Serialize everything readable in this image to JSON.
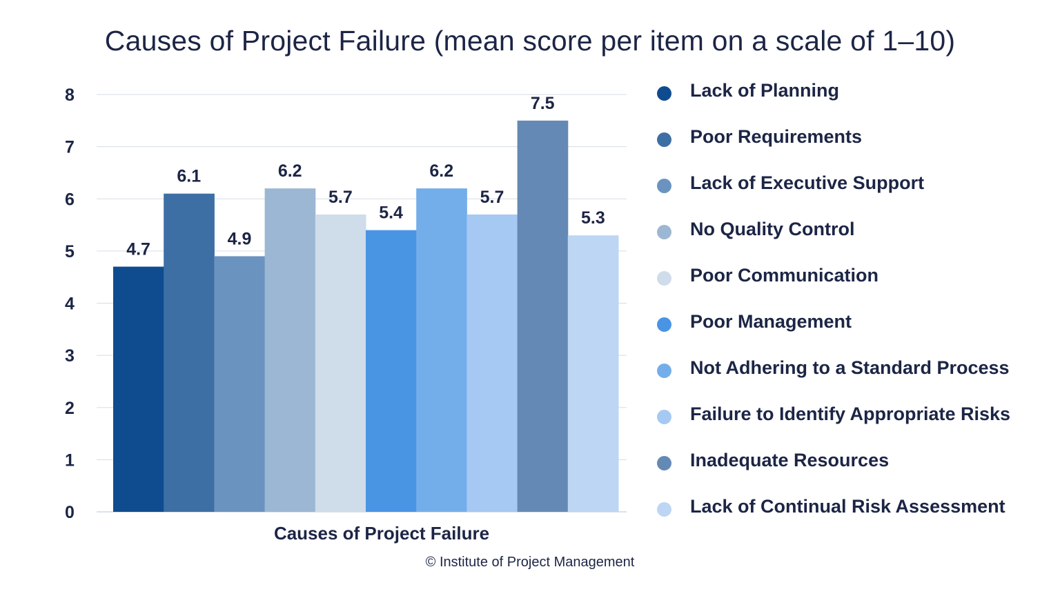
{
  "title": "Causes of Project Failure (mean score per item on a scale of 1–10)",
  "credit": "© Institute of Project Management",
  "chart_data": {
    "type": "bar",
    "title": "Causes of Project Failure (mean score per item on a scale of 1–10)",
    "xlabel": "Causes of Project Failure",
    "ylabel": "",
    "ylim": [
      0,
      8
    ],
    "yticks": [
      "0",
      "1",
      "2",
      "3",
      "4",
      "5",
      "6",
      "7",
      "8"
    ],
    "grid": true,
    "legend_position": "right",
    "series": [
      {
        "name": "Lack of Planning",
        "value": 4.7,
        "label": "4.7",
        "color": "#0f4c8f"
      },
      {
        "name": "Poor Requirements",
        "value": 6.1,
        "label": "6.1",
        "color": "#3d6fa5"
      },
      {
        "name": "Lack of Executive Support",
        "value": 4.9,
        "label": "4.9",
        "color": "#6b93bf"
      },
      {
        "name": "No Quality Control",
        "value": 6.2,
        "label": "6.2",
        "color": "#9cb7d4"
      },
      {
        "name": "Poor Communication",
        "value": 5.7,
        "label": "5.7",
        "color": "#cfdcea"
      },
      {
        "name": "Poor Management",
        "value": 5.4,
        "label": "5.4",
        "color": "#4a94e4"
      },
      {
        "name": "Not Adhering to a Standard Process",
        "value": 6.2,
        "label": "6.2",
        "color": "#74aeea"
      },
      {
        "name": "Failure to Identify Appropriate Risks",
        "value": 5.7,
        "label": "5.7",
        "color": "#a6c9f3"
      },
      {
        "name": "Inadequate Resources",
        "value": 7.5,
        "label": "7.5",
        "color": "#6589b5"
      },
      {
        "name": "Lack of Continual Risk Assessment",
        "value": 5.3,
        "label": "5.3",
        "color": "#bdd6f3"
      }
    ]
  }
}
